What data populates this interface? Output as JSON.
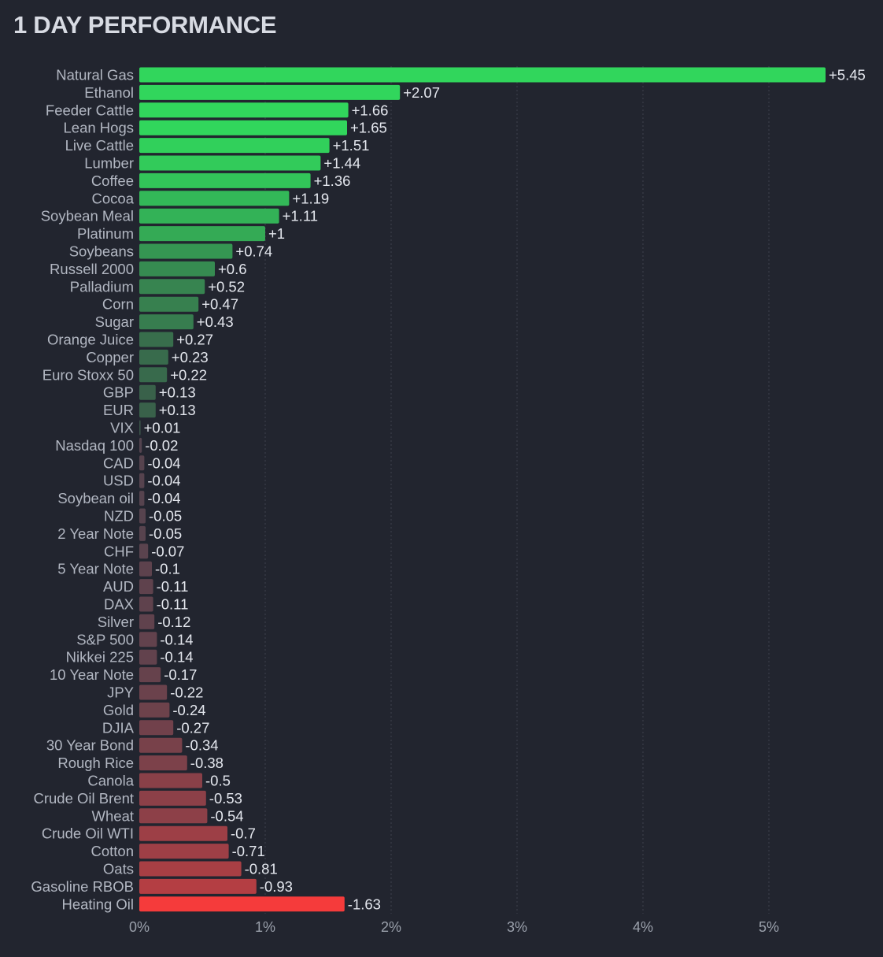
{
  "chart_data": {
    "type": "bar",
    "orientation": "horizontal",
    "title": "1 DAY PERFORMANCE",
    "xlabel": "",
    "ylabel": "",
    "xlim": [
      0,
      5.6
    ],
    "grid": true,
    "xticks": [
      {
        "value": 0,
        "label": "0%"
      },
      {
        "value": 1,
        "label": "1%"
      },
      {
        "value": 2,
        "label": "2%"
      },
      {
        "value": 3,
        "label": "3%"
      },
      {
        "value": 4,
        "label": "4%"
      },
      {
        "value": 5,
        "label": "5%"
      }
    ],
    "categories": [
      "Natural Gas",
      "Ethanol",
      "Feeder Cattle",
      "Lean Hogs",
      "Live Cattle",
      "Lumber",
      "Coffee",
      "Cocoa",
      "Soybean Meal",
      "Platinum",
      "Soybeans",
      "Russell 2000",
      "Palladium",
      "Corn",
      "Sugar",
      "Orange Juice",
      "Copper",
      "Euro Stoxx 50",
      "GBP",
      "EUR",
      "VIX",
      "Nasdaq 100",
      "CAD",
      "USD",
      "Soybean oil",
      "NZD",
      "2 Year Note",
      "CHF",
      "5 Year Note",
      "AUD",
      "DAX",
      "Silver",
      "S&P 500",
      "Nikkei 225",
      "10 Year Note",
      "JPY",
      "Gold",
      "DJIA",
      "30 Year Bond",
      "Rough Rice",
      "Canola",
      "Crude Oil Brent",
      "Wheat",
      "Crude Oil WTI",
      "Cotton",
      "Oats",
      "Gasoline RBOB",
      "Heating Oil"
    ],
    "values": [
      5.45,
      2.07,
      1.66,
      1.65,
      1.51,
      1.44,
      1.36,
      1.19,
      1.11,
      1,
      0.74,
      0.6,
      0.52,
      0.47,
      0.43,
      0.27,
      0.23,
      0.22,
      0.13,
      0.13,
      0.01,
      -0.02,
      -0.04,
      -0.04,
      -0.04,
      -0.05,
      -0.05,
      -0.07,
      -0.1,
      -0.11,
      -0.11,
      -0.12,
      -0.14,
      -0.14,
      -0.17,
      -0.22,
      -0.24,
      -0.27,
      -0.34,
      -0.38,
      -0.5,
      -0.53,
      -0.54,
      -0.7,
      -0.71,
      -0.81,
      -0.93,
      -1.63
    ],
    "value_labels": [
      "+5.45",
      "+2.07",
      "+1.66",
      "+1.65",
      "+1.51",
      "+1.44",
      "+1.36",
      "+1.19",
      "+1.11",
      "+1",
      "+0.74",
      "+0.6",
      "+0.52",
      "+0.47",
      "+0.43",
      "+0.27",
      "+0.23",
      "+0.22",
      "+0.13",
      "+0.13",
      "+0.01",
      "-0.02",
      "-0.04",
      "-0.04",
      "-0.04",
      "-0.05",
      "-0.05",
      "-0.07",
      "-0.1",
      "-0.11",
      "-0.11",
      "-0.12",
      "-0.14",
      "-0.14",
      "-0.17",
      "-0.22",
      "-0.24",
      "-0.27",
      "-0.34",
      "-0.38",
      "-0.5",
      "-0.53",
      "-0.54",
      "-0.7",
      "-0.71",
      "-0.81",
      "-0.93",
      "-1.63"
    ],
    "colors": {
      "background": "#22252f",
      "grid": "#3d414c",
      "label": "#b2b7c2",
      "value_label": "#e4e7ee",
      "tick": "#9aa0ab",
      "positive_strong": "#31d65c",
      "positive_weak": "#3a5148",
      "neutral": "#4a4b57",
      "negative_weak": "#50434f",
      "negative_strong": "#f53b3b"
    }
  }
}
